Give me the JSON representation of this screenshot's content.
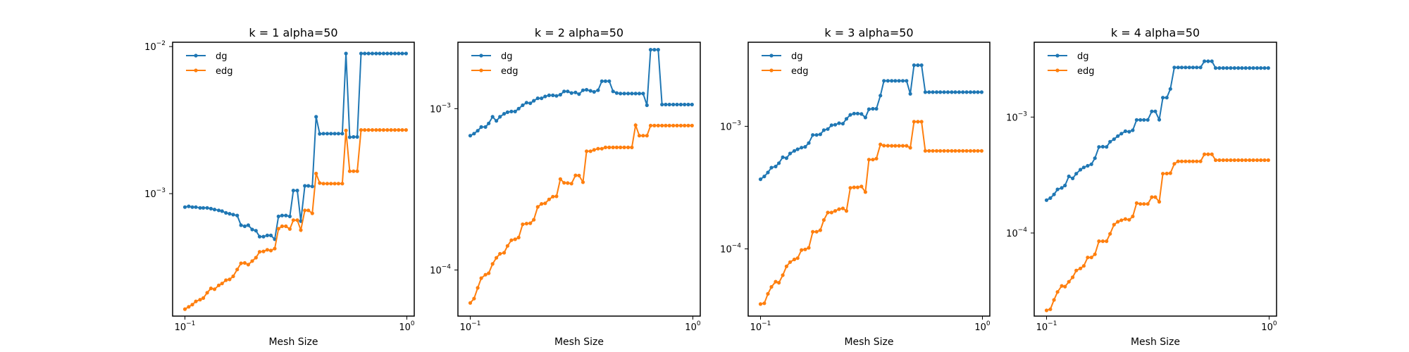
{
  "chart_data": [
    {
      "type": "line",
      "title": "k = 1 alpha=50",
      "xlabel": "Mesh Size",
      "ylabel": "",
      "xscale": "log",
      "yscale": "log",
      "xlim": [
        0.088,
        1.08
      ],
      "ylim": [
        0.000147,
        0.0107
      ],
      "xticks": [
        {
          "value": 0.1,
          "base": "10",
          "exp": "−1"
        },
        {
          "value": 1,
          "base": "10",
          "exp": "0"
        }
      ],
      "yticks": [
        {
          "value": 0.001,
          "base": "10",
          "exp": "−3"
        },
        {
          "value": 0.01,
          "base": "10",
          "exp": "−2"
        }
      ],
      "legend_position": "upper-left",
      "x": [
        0.1,
        0.104,
        0.108,
        0.112,
        0.117,
        0.121,
        0.126,
        0.131,
        0.136,
        0.142,
        0.147,
        0.153,
        0.159,
        0.165,
        0.172,
        0.179,
        0.186,
        0.193,
        0.201,
        0.209,
        0.217,
        0.226,
        0.235,
        0.244,
        0.254,
        0.264,
        0.274,
        0.285,
        0.297,
        0.308,
        0.321,
        0.333,
        0.347,
        0.36,
        0.375,
        0.39,
        0.405,
        0.421,
        0.438,
        0.455,
        0.473,
        0.492,
        0.512,
        0.532,
        0.553,
        0.575,
        0.598,
        0.622,
        0.646,
        0.672,
        0.699,
        0.727,
        0.755,
        0.785,
        0.817,
        0.849,
        0.883,
        0.918,
        0.954,
        0.992
      ],
      "series": [
        {
          "name": "dg",
          "color": "#1f77b4",
          "values": [
            0.00081,
            0.00082,
            0.00081,
            0.00081,
            0.0008,
            0.0008,
            0.0008,
            0.00079,
            0.00078,
            0.00077,
            0.00076,
            0.00074,
            0.00073,
            0.00072,
            0.00071,
            0.00061,
            0.0006,
            0.00061,
            0.00057,
            0.00056,
            0.00051,
            0.00051,
            0.00052,
            0.00052,
            0.00049,
            0.0007,
            0.00071,
            0.00071,
            0.0007,
            0.00105,
            0.00105,
            0.00065,
            0.00113,
            0.00113,
            0.00112,
            0.00333,
            0.00255,
            0.00256,
            0.00256,
            0.00256,
            0.00256,
            0.00256,
            0.00256,
            0.00897,
            0.00242,
            0.00243,
            0.00243,
            0.00897,
            0.00897,
            0.00897,
            0.00897,
            0.00897,
            0.00897,
            0.00897,
            0.00897,
            0.00897,
            0.00897,
            0.00897,
            0.00897,
            0.00897
          ]
        },
        {
          "name": "edg",
          "color": "#ff7f0e",
          "values": [
            0.000164,
            0.00017,
            0.000176,
            0.000185,
            0.00019,
            0.000195,
            0.000212,
            0.000227,
            0.000224,
            0.000238,
            0.000245,
            0.000258,
            0.000261,
            0.000274,
            0.000305,
            0.000336,
            0.000338,
            0.000329,
            0.000348,
            0.000367,
            0.000402,
            0.000405,
            0.000415,
            0.00041,
            0.000423,
            0.000578,
            0.0006,
            0.0006,
            0.000575,
            0.00066,
            0.00066,
            0.000565,
            0.00077,
            0.00077,
            0.000735,
            0.00137,
            0.00118,
            0.00117,
            0.00117,
            0.00117,
            0.00117,
            0.00117,
            0.00117,
            0.00269,
            0.00142,
            0.00142,
            0.00142,
            0.00271,
            0.00271,
            0.00271,
            0.00271,
            0.00271,
            0.00271,
            0.00271,
            0.00271,
            0.00271,
            0.00271,
            0.00271,
            0.00271,
            0.00271
          ]
        }
      ]
    },
    {
      "type": "line",
      "title": "k = 2 alpha=50",
      "xlabel": "Mesh Size",
      "ylabel": "",
      "xscale": "log",
      "yscale": "log",
      "xlim": [
        0.088,
        1.08
      ],
      "ylim": [
        5.18e-05,
        0.00258
      ],
      "xticks": [
        {
          "value": 0.1,
          "base": "10",
          "exp": "−1"
        },
        {
          "value": 1,
          "base": "10",
          "exp": "0"
        }
      ],
      "yticks": [
        {
          "value": 0.0001,
          "base": "10",
          "exp": "−4"
        },
        {
          "value": 0.001,
          "base": "10",
          "exp": "−3"
        }
      ],
      "legend_position": "upper-left",
      "x": [
        0.1,
        0.104,
        0.108,
        0.112,
        0.117,
        0.121,
        0.126,
        0.131,
        0.136,
        0.142,
        0.147,
        0.153,
        0.159,
        0.165,
        0.172,
        0.179,
        0.186,
        0.193,
        0.201,
        0.209,
        0.217,
        0.226,
        0.235,
        0.244,
        0.254,
        0.264,
        0.274,
        0.285,
        0.297,
        0.308,
        0.321,
        0.333,
        0.347,
        0.36,
        0.375,
        0.39,
        0.405,
        0.421,
        0.438,
        0.455,
        0.473,
        0.492,
        0.512,
        0.532,
        0.553,
        0.575,
        0.598,
        0.622,
        0.646,
        0.672,
        0.699,
        0.727,
        0.755,
        0.785,
        0.817,
        0.849,
        0.883,
        0.918,
        0.954,
        0.992
      ],
      "series": [
        {
          "name": "dg",
          "color": "#1f77b4",
          "values": [
            0.00068,
            0.0007,
            0.00073,
            0.00077,
            0.00077,
            0.00081,
            0.00089,
            0.00084,
            0.00089,
            0.00093,
            0.00095,
            0.00096,
            0.00096,
            0.001,
            0.00105,
            0.00109,
            0.00108,
            0.00112,
            0.00116,
            0.00116,
            0.00119,
            0.00121,
            0.00121,
            0.0012,
            0.00122,
            0.00128,
            0.00128,
            0.00125,
            0.00126,
            0.00123,
            0.0013,
            0.00131,
            0.00129,
            0.00127,
            0.0013,
            0.00148,
            0.00148,
            0.00148,
            0.00128,
            0.00125,
            0.00124,
            0.00124,
            0.00124,
            0.00124,
            0.00124,
            0.00124,
            0.00124,
            0.00105,
            0.00232,
            0.00232,
            0.00232,
            0.00106,
            0.00106,
            0.00106,
            0.00106,
            0.00106,
            0.00106,
            0.00106,
            0.00106,
            0.00106
          ]
        },
        {
          "name": "edg",
          "color": "#ff7f0e",
          "values": [
            6.25e-05,
            6.65e-05,
            7.75e-05,
            8.9e-05,
            9.35e-05,
            9.55e-05,
            0.000109,
            0.000119,
            0.000126,
            0.000128,
            0.000141,
            0.000153,
            0.000155,
            0.000159,
            0.000192,
            0.000194,
            0.000195,
            0.000205,
            0.000246,
            0.000257,
            0.000259,
            0.000274,
            0.000285,
            0.000286,
            0.000366,
            0.000347,
            0.000346,
            0.000343,
            0.000386,
            0.000385,
            0.00035,
            0.000545,
            0.000545,
            0.000555,
            0.000565,
            0.000565,
            0.000575,
            0.000575,
            0.000575,
            0.000575,
            0.000575,
            0.000575,
            0.000575,
            0.000575,
            0.00079,
            0.00068,
            0.00068,
            0.00068,
            0.000785,
            0.000785,
            0.000785,
            0.000785,
            0.000785,
            0.000785,
            0.000785,
            0.000785,
            0.000785,
            0.000785,
            0.000785,
            0.000785
          ]
        }
      ]
    },
    {
      "type": "line",
      "title": "k = 3 alpha=50",
      "xlabel": "Mesh Size",
      "ylabel": "",
      "xscale": "log",
      "yscale": "log",
      "xlim": [
        0.088,
        1.08
      ],
      "ylim": [
        2.83e-05,
        0.00485
      ],
      "xticks": [
        {
          "value": 0.1,
          "base": "10",
          "exp": "−1"
        },
        {
          "value": 1,
          "base": "10",
          "exp": "0"
        }
      ],
      "yticks": [
        {
          "value": 0.0001,
          "base": "10",
          "exp": "−4"
        },
        {
          "value": 0.001,
          "base": "10",
          "exp": "−3"
        }
      ],
      "legend_position": "upper-left",
      "x": [
        0.1,
        0.104,
        0.108,
        0.112,
        0.117,
        0.121,
        0.126,
        0.131,
        0.136,
        0.142,
        0.147,
        0.153,
        0.159,
        0.165,
        0.172,
        0.179,
        0.186,
        0.193,
        0.201,
        0.209,
        0.217,
        0.226,
        0.235,
        0.244,
        0.254,
        0.264,
        0.274,
        0.285,
        0.297,
        0.308,
        0.321,
        0.333,
        0.347,
        0.36,
        0.375,
        0.39,
        0.405,
        0.421,
        0.438,
        0.455,
        0.473,
        0.492,
        0.512,
        0.532,
        0.553,
        0.575,
        0.598,
        0.622,
        0.646,
        0.672,
        0.699,
        0.727,
        0.755,
        0.785,
        0.817,
        0.849,
        0.883,
        0.918,
        0.954,
        0.992
      ],
      "series": [
        {
          "name": "dg",
          "color": "#1f77b4",
          "values": [
            0.00037,
            0.00039,
            0.00042,
            0.00046,
            0.00047,
            0.0005,
            0.00056,
            0.00055,
            0.0006,
            0.00063,
            0.00065,
            0.00067,
            0.00068,
            0.00073,
            0.00085,
            0.00085,
            0.00086,
            0.00093,
            0.00095,
            0.00102,
            0.00103,
            0.00106,
            0.00105,
            0.00115,
            0.00124,
            0.00127,
            0.00127,
            0.00126,
            0.00118,
            0.00138,
            0.00139,
            0.00139,
            0.00178,
            0.00235,
            0.00235,
            0.00235,
            0.00235,
            0.00235,
            0.00235,
            0.00235,
            0.00184,
            0.00315,
            0.00315,
            0.00315,
            0.0019,
            0.0019,
            0.0019,
            0.0019,
            0.0019,
            0.0019,
            0.0019,
            0.0019,
            0.0019,
            0.0019,
            0.0019,
            0.0019,
            0.0019,
            0.0019,
            0.0019,
            0.0019
          ]
        },
        {
          "name": "edg",
          "color": "#ff7f0e",
          "values": [
            3.55e-05,
            3.6e-05,
            4.3e-05,
            4.9e-05,
            5.4e-05,
            5.3e-05,
            6.1e-05,
            7.2e-05,
            7.8e-05,
            8.2e-05,
            8.4e-05,
            9.8e-05,
            9.9e-05,
            0.000102,
            0.000138,
            0.000138,
            0.000142,
            0.000172,
            0.000198,
            0.000198,
            0.000204,
            0.000211,
            0.000214,
            0.000204,
            0.000315,
            0.000318,
            0.000318,
            0.000323,
            0.000291,
            0.000535,
            0.000535,
            0.000545,
            0.000712,
            0.000695,
            0.000694,
            0.000693,
            0.000693,
            0.000693,
            0.000693,
            0.000693,
            0.000668,
            0.00109,
            0.00109,
            0.00109,
            0.00063,
            0.00063,
            0.00063,
            0.00063,
            0.00063,
            0.00063,
            0.00063,
            0.00063,
            0.00063,
            0.00063,
            0.00063,
            0.00063,
            0.00063,
            0.00063,
            0.00063,
            0.00063
          ]
        }
      ]
    },
    {
      "type": "line",
      "title": "k = 4 alpha=50",
      "xlabel": "Mesh Size",
      "ylabel": "",
      "xscale": "log",
      "yscale": "log",
      "xlim": [
        0.088,
        1.08
      ],
      "ylim": [
        1.92e-05,
        0.00442
      ],
      "xticks": [
        {
          "value": 0.1,
          "base": "10",
          "exp": "−1"
        },
        {
          "value": 1,
          "base": "10",
          "exp": "0"
        }
      ],
      "yticks": [
        {
          "value": 0.0001,
          "base": "10",
          "exp": "−4"
        },
        {
          "value": 0.001,
          "base": "10",
          "exp": "−3"
        }
      ],
      "legend_position": "upper-left",
      "x": [
        0.1,
        0.104,
        0.108,
        0.112,
        0.117,
        0.121,
        0.126,
        0.131,
        0.136,
        0.142,
        0.147,
        0.153,
        0.159,
        0.165,
        0.172,
        0.179,
        0.186,
        0.193,
        0.201,
        0.209,
        0.217,
        0.226,
        0.235,
        0.244,
        0.254,
        0.264,
        0.274,
        0.285,
        0.297,
        0.308,
        0.321,
        0.333,
        0.347,
        0.36,
        0.375,
        0.39,
        0.405,
        0.421,
        0.438,
        0.455,
        0.473,
        0.492,
        0.512,
        0.532,
        0.553,
        0.575,
        0.598,
        0.622,
        0.646,
        0.672,
        0.699,
        0.727,
        0.755,
        0.785,
        0.817,
        0.849,
        0.883,
        0.918,
        0.954,
        0.992
      ],
      "series": [
        {
          "name": "dg",
          "color": "#1f77b4",
          "values": [
            0.000192,
            0.0002,
            0.000215,
            0.000238,
            0.000245,
            0.000257,
            0.000308,
            0.000296,
            0.000325,
            0.000352,
            0.000368,
            0.00038,
            0.000392,
            0.000442,
            0.000553,
            0.000555,
            0.000553,
            0.000613,
            0.000645,
            0.000685,
            0.00072,
            0.000755,
            0.000748,
            0.00077,
            0.000945,
            0.000945,
            0.000945,
            0.000945,
            0.00112,
            0.00112,
            0.00095,
            0.00147,
            0.00147,
            0.00175,
            0.00268,
            0.00268,
            0.00268,
            0.00268,
            0.00268,
            0.00268,
            0.00268,
            0.00268,
            0.00303,
            0.00303,
            0.00303,
            0.00265,
            0.00265,
            0.00265,
            0.00265,
            0.00265,
            0.00265,
            0.00265,
            0.00265,
            0.00265,
            0.00265,
            0.00265,
            0.00265,
            0.00265,
            0.00265,
            0.00265
          ]
        },
        {
          "name": "edg",
          "color": "#ff7f0e",
          "values": [
            2.15e-05,
            2.2e-05,
            2.65e-05,
            3.1e-05,
            3.5e-05,
            3.45e-05,
            3.8e-05,
            4.15e-05,
            4.75e-05,
            4.95e-05,
            5.2e-05,
            6.15e-05,
            6.15e-05,
            6.55e-05,
            8.5e-05,
            8.5e-05,
            8.5e-05,
            9.85e-05,
            0.000118,
            0.000125,
            0.000129,
            0.000132,
            0.00013,
            0.000139,
            0.000181,
            0.000178,
            0.000178,
            0.000178,
            0.000204,
            0.000204,
            0.000186,
            0.000325,
            0.000326,
            0.000328,
            0.000395,
            0.000415,
            0.000415,
            0.000415,
            0.000415,
            0.000415,
            0.000415,
            0.000415,
            0.000478,
            0.000478,
            0.000478,
            0.000425,
            0.000425,
            0.000425,
            0.000425,
            0.000425,
            0.000425,
            0.000425,
            0.000425,
            0.000425,
            0.000425,
            0.000425,
            0.000425,
            0.000425,
            0.000425,
            0.000425
          ]
        }
      ]
    }
  ]
}
